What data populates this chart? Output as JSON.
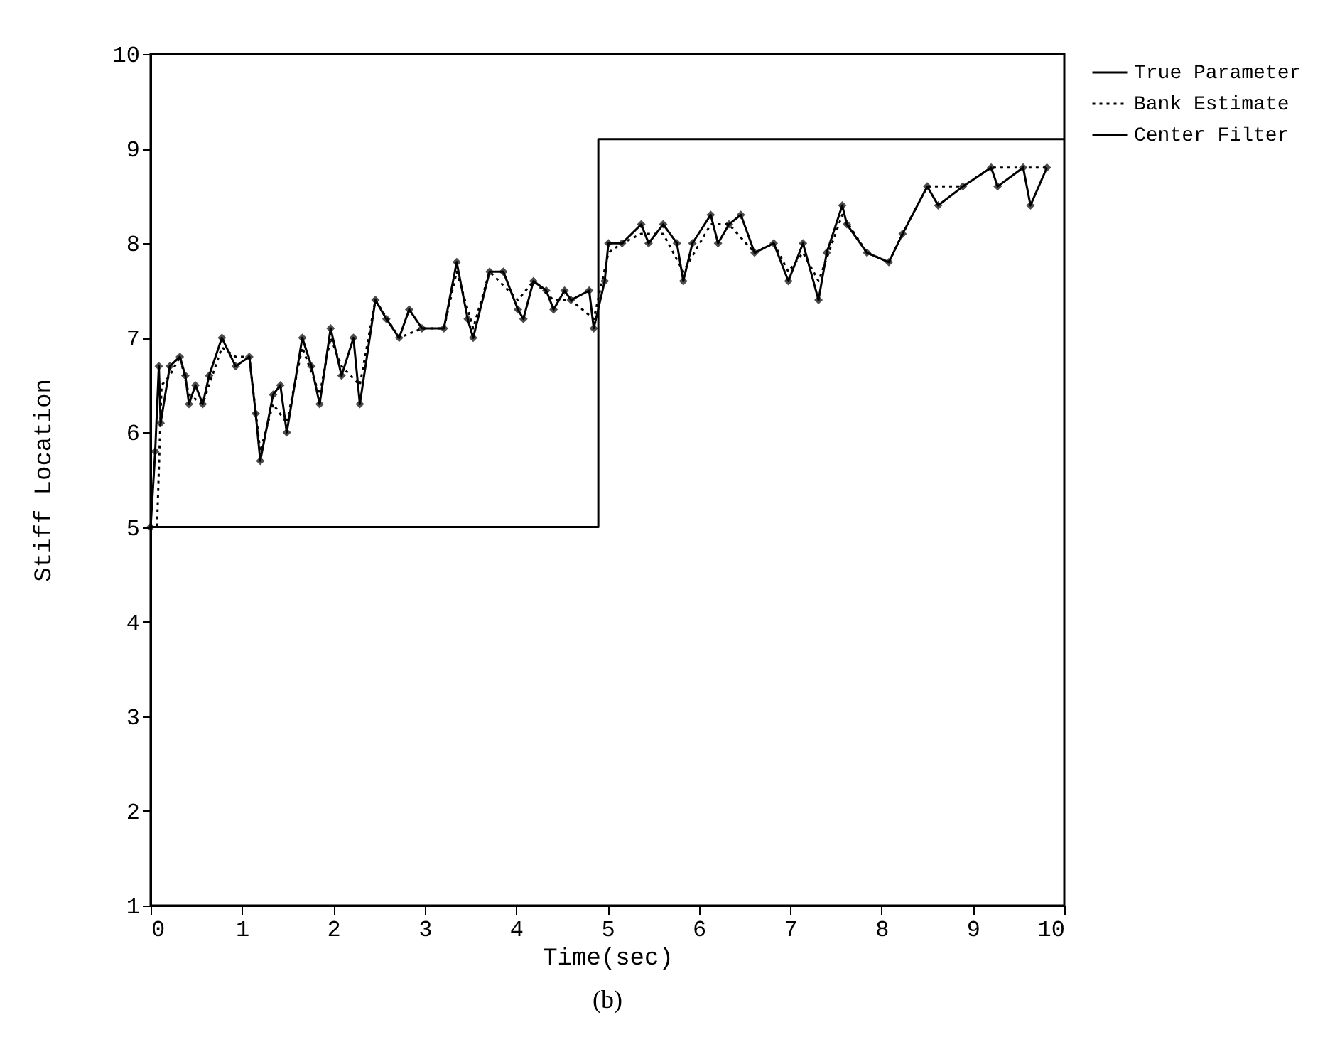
{
  "chart_data": {
    "type": "line",
    "xlabel": "Time(sec)",
    "ylabel": "Stiff Location",
    "annotations": [
      "(b)"
    ],
    "xlim": [
      0,
      10
    ],
    "xticks": [
      0,
      1,
      2,
      3,
      4,
      5,
      6,
      7,
      8,
      9,
      10
    ],
    "ylim": [
      1,
      10
    ],
    "yticks": [
      1,
      2,
      3,
      4,
      5,
      6,
      7,
      8,
      9,
      10
    ],
    "grid": false,
    "legend": "right",
    "series": [
      {
        "name": "True Parameter",
        "color": "#000000",
        "line_style": "solid",
        "marker": "none",
        "x": [
          0,
          4.9,
          4.9,
          10
        ],
        "values": [
          5,
          5,
          9.1,
          9.1
        ]
      },
      {
        "name": "Bank Estimate",
        "color": "#000000",
        "line_style": "dotted",
        "marker": "none",
        "x": [
          0,
          0.07,
          0.12,
          0.21,
          0.32,
          0.42,
          0.57,
          0.78,
          0.93,
          1.08,
          1.2,
          1.34,
          1.49,
          1.66,
          1.85,
          1.97,
          2.09,
          2.29,
          2.46,
          2.72,
          2.97,
          3.21,
          3.35,
          3.53,
          3.71,
          4.02,
          4.19,
          4.41,
          4.6,
          4.85,
          5.01,
          5.16,
          5.37,
          5.61,
          5.83,
          6.13,
          6.33,
          6.61,
          6.82,
          6.98,
          7.14,
          7.31,
          7.57,
          7.84,
          8.08,
          8.23,
          8.5,
          8.89,
          9.2,
          9.55,
          9.81
        ],
        "values": [
          5,
          5,
          6.5,
          6.6,
          6.8,
          6.4,
          6.3,
          6.9,
          6.8,
          6.8,
          5.8,
          6.3,
          6.1,
          6.9,
          6.4,
          7.0,
          6.7,
          6.5,
          7.4,
          7.0,
          7.1,
          7.1,
          7.7,
          7.1,
          7.7,
          7.4,
          7.6,
          7.4,
          7.4,
          7.2,
          7.9,
          8.0,
          8.1,
          8.1,
          7.7,
          8.2,
          8.2,
          7.9,
          8.0,
          7.7,
          7.9,
          7.6,
          8.3,
          7.9,
          7.8,
          8.1,
          8.6,
          8.6,
          8.8,
          8.8,
          8.8
        ]
      },
      {
        "name": "Center Filter",
        "color": "#000000",
        "line_style": "solid",
        "marker": "diamond",
        "x": [
          0,
          0.05,
          0.09,
          0.11,
          0.21,
          0.32,
          0.38,
          0.42,
          0.49,
          0.57,
          0.64,
          0.78,
          0.93,
          1.08,
          1.15,
          1.2,
          1.34,
          1.42,
          1.49,
          1.66,
          1.76,
          1.85,
          1.97,
          2.09,
          2.22,
          2.29,
          2.46,
          2.58,
          2.72,
          2.83,
          2.97,
          3.21,
          3.35,
          3.47,
          3.53,
          3.71,
          3.86,
          4.02,
          4.08,
          4.19,
          4.33,
          4.41,
          4.53,
          4.6,
          4.8,
          4.85,
          4.97,
          5.01,
          5.16,
          5.37,
          5.45,
          5.61,
          5.76,
          5.83,
          5.93,
          6.13,
          6.21,
          6.33,
          6.46,
          6.61,
          6.82,
          6.98,
          7.14,
          7.31,
          7.4,
          7.57,
          7.62,
          7.84,
          8.08,
          8.23,
          8.5,
          8.62,
          8.89,
          9.2,
          9.27,
          9.55,
          9.63,
          9.81
        ],
        "values": [
          5,
          5.8,
          6.7,
          6.1,
          6.7,
          6.8,
          6.6,
          6.3,
          6.5,
          6.3,
          6.6,
          7.0,
          6.7,
          6.8,
          6.2,
          5.7,
          6.4,
          6.5,
          6.0,
          7.0,
          6.7,
          6.3,
          7.1,
          6.6,
          7.0,
          6.3,
          7.4,
          7.2,
          7.0,
          7.3,
          7.1,
          7.1,
          7.8,
          7.2,
          7.0,
          7.7,
          7.7,
          7.3,
          7.2,
          7.6,
          7.5,
          7.3,
          7.5,
          7.4,
          7.5,
          7.1,
          7.6,
          8.0,
          8.0,
          8.2,
          8.0,
          8.2,
          8.0,
          7.6,
          8.0,
          8.3,
          8.0,
          8.2,
          8.3,
          7.9,
          8.0,
          7.6,
          8.0,
          7.4,
          7.9,
          8.4,
          8.2,
          7.9,
          7.8,
          8.1,
          8.6,
          8.4,
          8.6,
          8.8,
          8.6,
          8.8,
          8.4,
          8.8
        ]
      }
    ]
  }
}
